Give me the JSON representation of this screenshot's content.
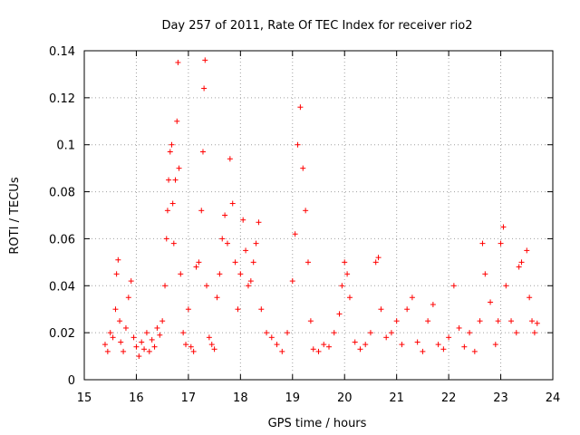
{
  "chart_data": {
    "type": "scatter",
    "title": "Day 257 of 2011, Rate Of TEC Index for receiver rio2",
    "xlabel": "GPS time / hours",
    "ylabel": "ROTI / TECUs",
    "xlim": [
      15,
      24
    ],
    "ylim": [
      0,
      0.14
    ],
    "x_ticks": [
      15,
      16,
      17,
      18,
      19,
      20,
      21,
      22,
      23,
      24
    ],
    "x_tick_labels": [
      "15",
      "16",
      "17",
      "18",
      "19",
      "20",
      "21",
      "22",
      "23",
      "24"
    ],
    "y_ticks": [
      0,
      0.02,
      0.04,
      0.06,
      0.08,
      0.1,
      0.12,
      0.14
    ],
    "y_tick_labels": [
      "0",
      "0.02",
      "0.04",
      "0.06",
      "0.08",
      "0.1",
      "0.12",
      "0.14"
    ],
    "grid": true,
    "marker": "+",
    "series": [
      {
        "name": "ROTI",
        "color": "#ff0000",
        "x": [
          15.4,
          15.45,
          15.5,
          15.55,
          15.6,
          15.62,
          15.65,
          15.68,
          15.7,
          15.75,
          15.8,
          15.85,
          15.9,
          15.95,
          16.0,
          16.05,
          16.1,
          16.15,
          16.2,
          16.25,
          16.3,
          16.35,
          16.4,
          16.45,
          16.5,
          16.55,
          16.58,
          16.6,
          16.62,
          16.65,
          16.68,
          16.7,
          16.72,
          16.75,
          16.78,
          16.8,
          16.82,
          16.85,
          16.9,
          16.95,
          17.0,
          17.05,
          17.1,
          17.15,
          17.2,
          17.25,
          17.28,
          17.3,
          17.32,
          17.35,
          17.4,
          17.45,
          17.5,
          17.55,
          17.6,
          17.65,
          17.7,
          17.75,
          17.8,
          17.85,
          17.9,
          17.95,
          18.0,
          18.05,
          18.1,
          18.15,
          18.2,
          18.25,
          18.3,
          18.35,
          18.4,
          18.5,
          18.6,
          18.7,
          18.8,
          18.9,
          19.0,
          19.05,
          19.1,
          19.15,
          19.2,
          19.25,
          19.3,
          19.35,
          19.4,
          19.5,
          19.6,
          19.7,
          19.8,
          19.9,
          19.95,
          20.0,
          20.05,
          20.1,
          20.2,
          20.3,
          20.4,
          20.5,
          20.6,
          20.65,
          20.7,
          20.8,
          20.9,
          21.0,
          21.1,
          21.2,
          21.3,
          21.4,
          21.5,
          21.6,
          21.7,
          21.8,
          21.9,
          22.0,
          22.1,
          22.2,
          22.3,
          22.4,
          22.5,
          22.6,
          22.65,
          22.7,
          22.8,
          22.9,
          22.95,
          23.0,
          23.05,
          23.1,
          23.2,
          23.3,
          23.35,
          23.4,
          23.5,
          23.55,
          23.6,
          23.65,
          23.7
        ],
        "y": [
          0.015,
          0.012,
          0.02,
          0.018,
          0.03,
          0.045,
          0.051,
          0.025,
          0.016,
          0.012,
          0.022,
          0.035,
          0.042,
          0.018,
          0.014,
          0.01,
          0.016,
          0.013,
          0.02,
          0.012,
          0.017,
          0.014,
          0.022,
          0.019,
          0.025,
          0.04,
          0.06,
          0.072,
          0.085,
          0.097,
          0.1,
          0.075,
          0.058,
          0.085,
          0.11,
          0.135,
          0.09,
          0.045,
          0.02,
          0.015,
          0.03,
          0.014,
          0.012,
          0.048,
          0.05,
          0.072,
          0.097,
          0.124,
          0.136,
          0.04,
          0.018,
          0.015,
          0.013,
          0.035,
          0.045,
          0.06,
          0.07,
          0.058,
          0.094,
          0.075,
          0.05,
          0.03,
          0.045,
          0.068,
          0.055,
          0.04,
          0.042,
          0.05,
          0.058,
          0.067,
          0.03,
          0.02,
          0.018,
          0.015,
          0.012,
          0.02,
          0.042,
          0.062,
          0.1,
          0.116,
          0.09,
          0.072,
          0.05,
          0.025,
          0.013,
          0.012,
          0.015,
          0.014,
          0.02,
          0.028,
          0.04,
          0.05,
          0.045,
          0.035,
          0.016,
          0.013,
          0.015,
          0.02,
          0.05,
          0.052,
          0.03,
          0.018,
          0.02,
          0.025,
          0.015,
          0.03,
          0.035,
          0.016,
          0.012,
          0.025,
          0.032,
          0.015,
          0.013,
          0.018,
          0.04,
          0.022,
          0.014,
          0.02,
          0.012,
          0.025,
          0.058,
          0.045,
          0.033,
          0.015,
          0.025,
          0.058,
          0.065,
          0.04,
          0.025,
          0.02,
          0.048,
          0.05,
          0.055,
          0.035,
          0.025,
          0.02,
          0.024
        ]
      }
    ]
  }
}
